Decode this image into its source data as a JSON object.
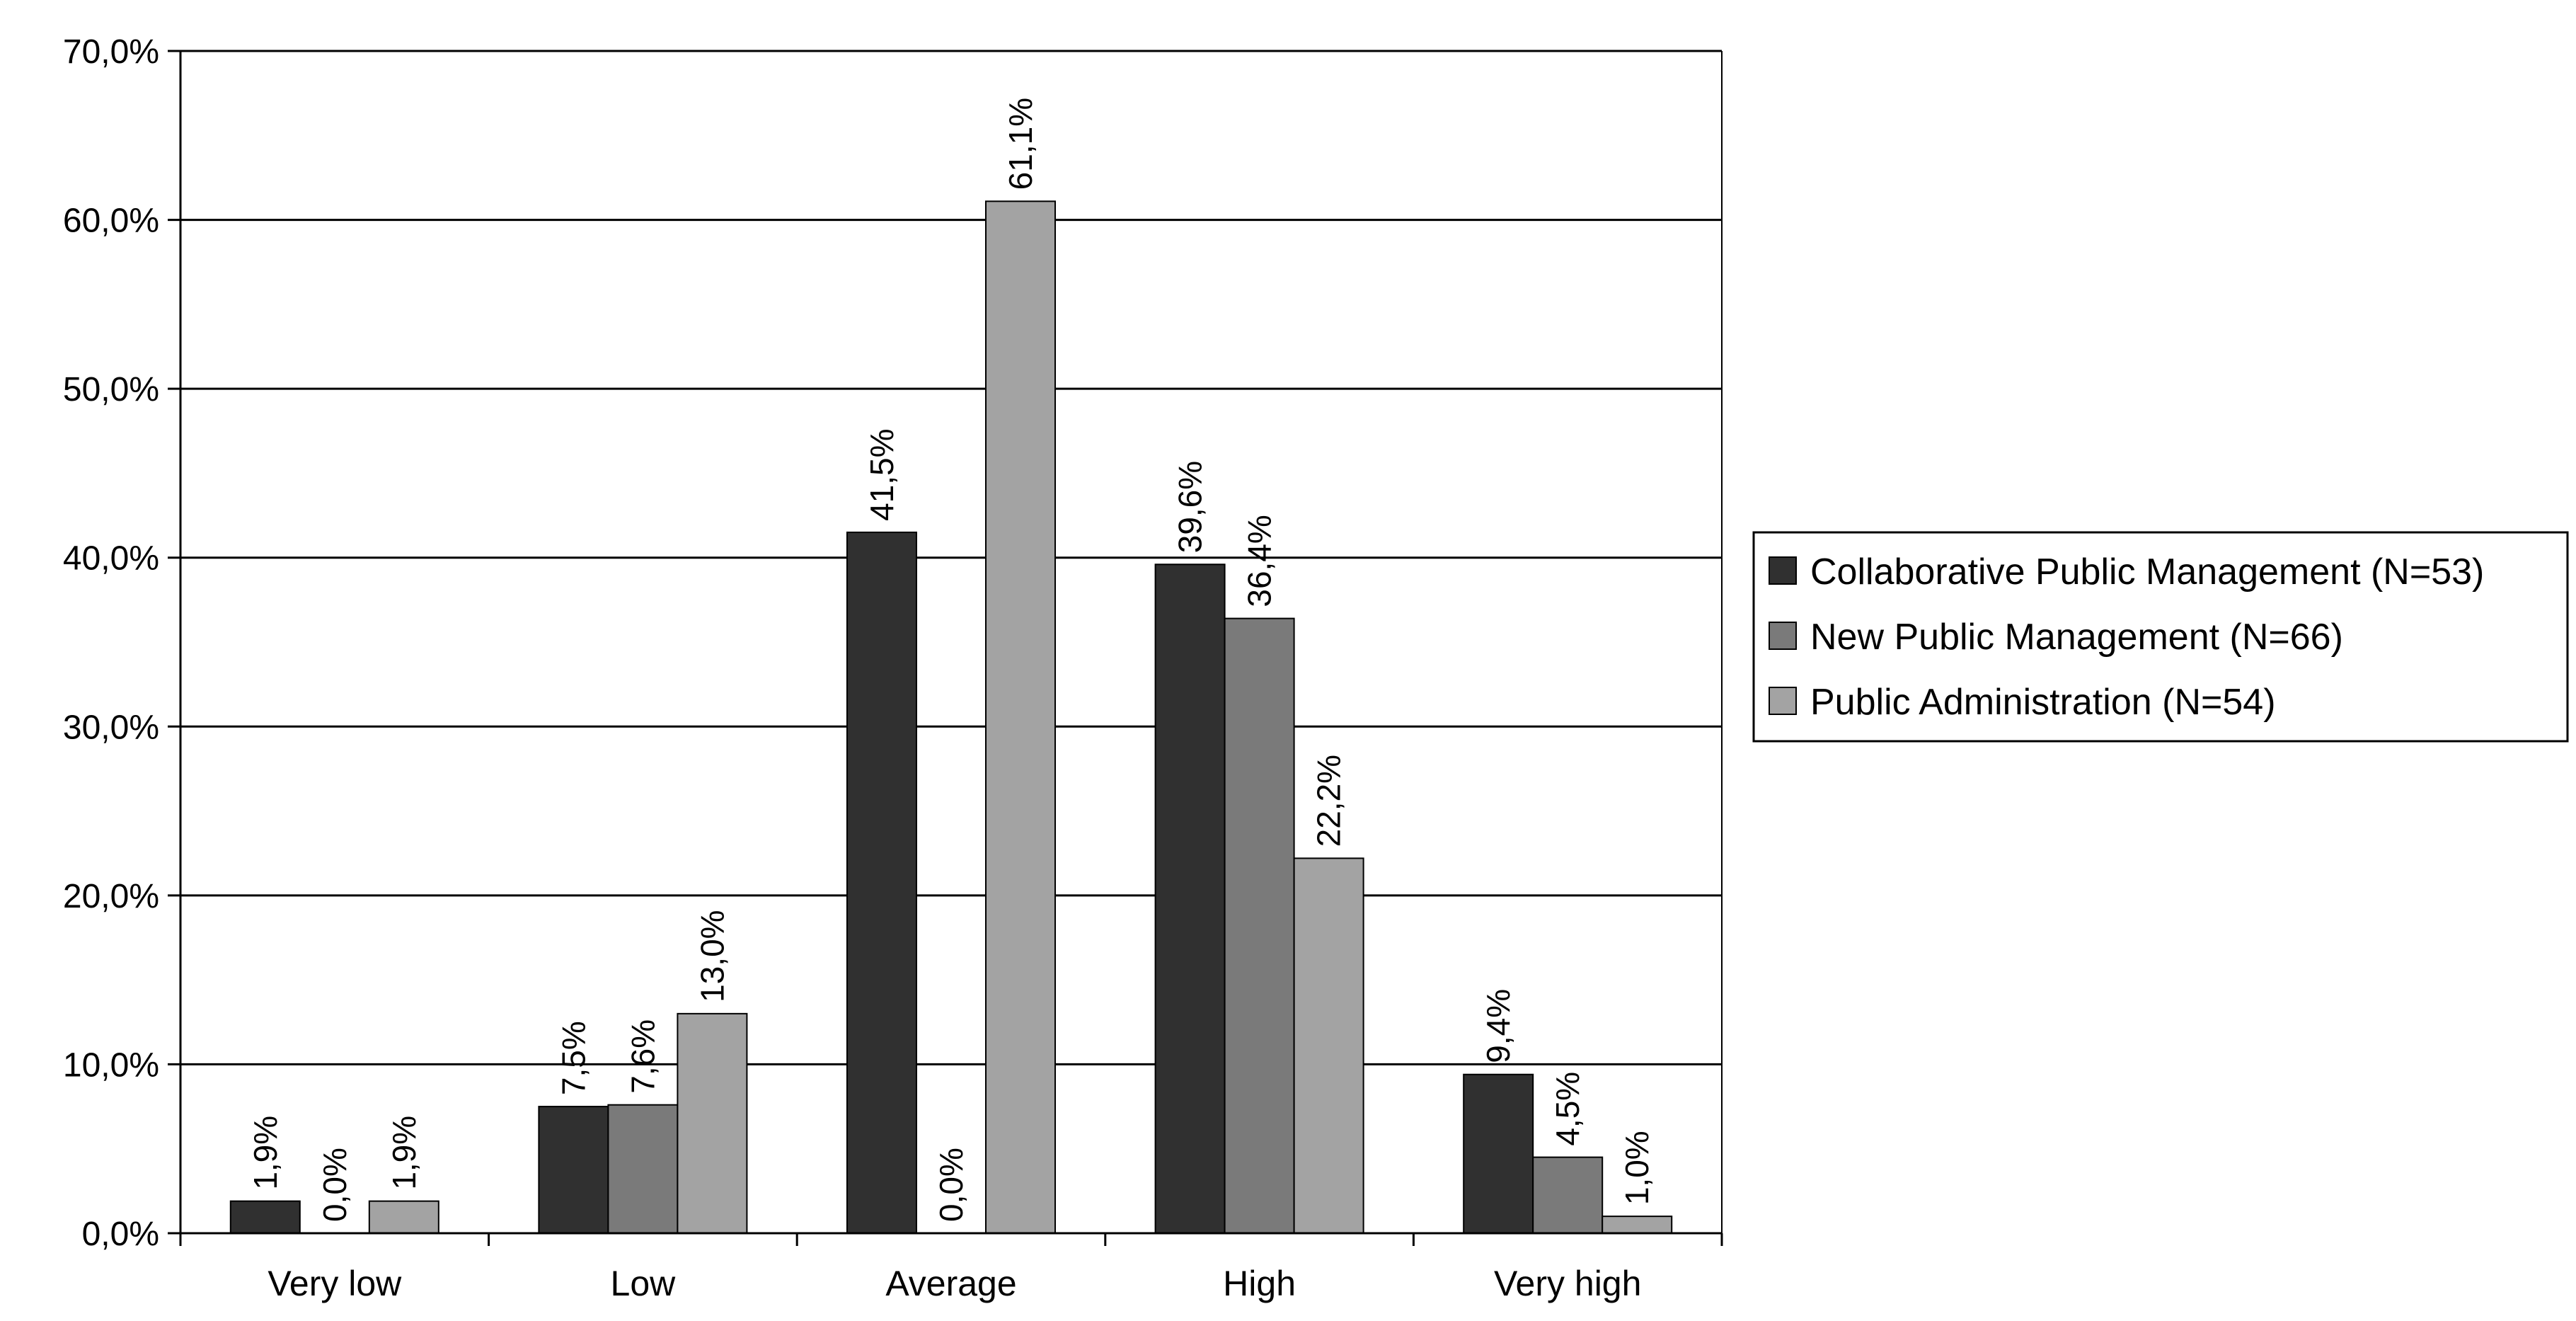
{
  "chart_data": {
    "type": "bar",
    "title": "",
    "xlabel": "",
    "ylabel": "",
    "categories": [
      "Very low",
      "Low",
      "Average",
      "High",
      "Very high"
    ],
    "series": [
      {
        "name": "Collaborative Public Management (N=53)",
        "color": "#303030",
        "values": [
          1.9,
          7.5,
          41.5,
          39.6,
          9.4
        ],
        "labels": [
          "1,9%",
          "7,5%",
          "41,5%",
          "39,6%",
          "9,4%"
        ]
      },
      {
        "name": "New Public Management (N=66)",
        "color": "#7a7a7a",
        "values": [
          0.0,
          7.6,
          0.0,
          36.4,
          4.5
        ],
        "labels": [
          "0,0%",
          "7,6%",
          "0,0%",
          "36,4%",
          "4,5%"
        ]
      },
      {
        "name": "Public Administration (N=54)",
        "color": "#a3a3a3",
        "values": [
          1.9,
          13.0,
          61.1,
          22.2,
          1.0
        ],
        "labels": [
          "1,9%",
          "13,0%",
          "61,1%",
          "22,2%",
          "1,0%"
        ]
      }
    ],
    "ylim": [
      0,
      70
    ],
    "yticks": [
      0,
      10,
      20,
      30,
      40,
      50,
      60,
      70
    ],
    "ytick_labels": [
      "0,0%",
      "10,0%",
      "20,0%",
      "30,0%",
      "40,0%",
      "50,0%",
      "60,0%",
      "70,0%"
    ],
    "grid": true,
    "legend_position": "right"
  }
}
